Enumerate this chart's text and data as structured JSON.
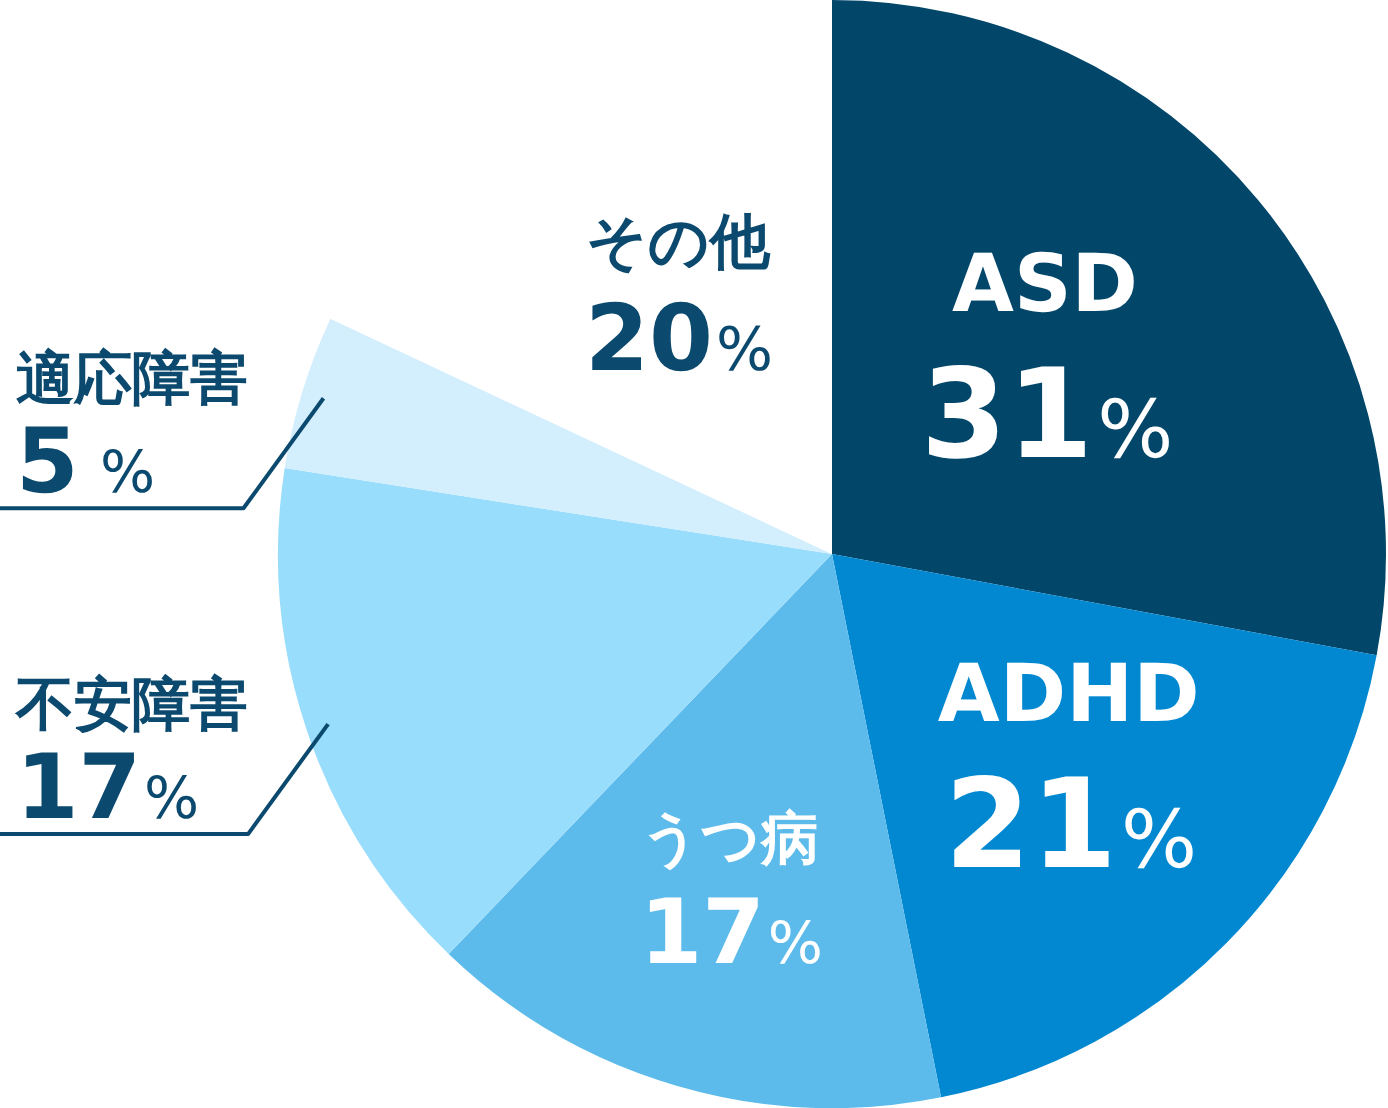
{
  "chart_data": {
    "type": "pie",
    "categories": [
      "ASD",
      "ADHD",
      "うつ病",
      "不安障害",
      "適応障害",
      "その他"
    ],
    "values": [
      31,
      21,
      17,
      17,
      5,
      20
    ],
    "value_labels": [
      "31%",
      "21%",
      "17%",
      "17%",
      "5 %",
      "20%"
    ],
    "colors": [
      "#02466a",
      "#0288d1",
      "#5dbbeb",
      "#99ddfc",
      "#d3eefc",
      "#ffffff"
    ],
    "legend": false
  }
}
